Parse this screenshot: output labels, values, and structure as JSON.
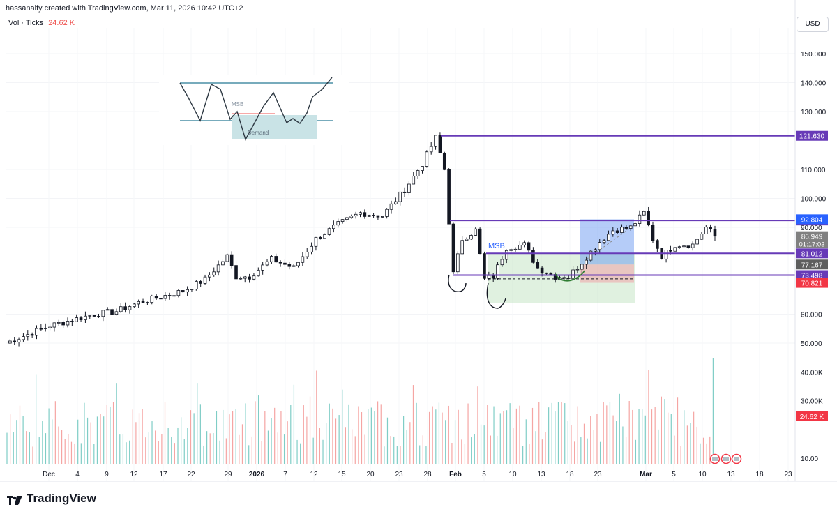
{
  "header": {
    "attribution": "hassanalfy created with TradingView.com, Mar 11, 2026 10:42 UTC+2",
    "vol_label": "Vol · Ticks",
    "vol_value": "24.62 K",
    "currency": "USD"
  },
  "footer": {
    "brand": "TradingView",
    "logo_icon": "tradingview-logo-icon"
  },
  "colors": {
    "up": "#26a69a",
    "down": "#ef5350",
    "level_line": "#673ab7",
    "long_target": "#5b8def",
    "long_stop": "#f0a3a8",
    "long_zone": "#a5d6a7",
    "price_tag_dark": "#5d5d5d",
    "last_price": "#808080"
  },
  "annotations": {
    "msb_label": "MSB",
    "inset_msb": "MSB",
    "inset_demand": "Demand"
  },
  "chart_data": {
    "type": "candlestick",
    "title": "",
    "x_ticks": [
      "Dec",
      "4",
      "9",
      "12",
      "17",
      "22",
      "29",
      "2026",
      "7",
      "12",
      "15",
      "20",
      "23",
      "28",
      "Feb",
      "5",
      "10",
      "13",
      "18",
      "23",
      "Mar",
      "5",
      "10",
      "13",
      "18",
      "23"
    ],
    "y_ticks": [
      "150.000",
      "140.000",
      "130.000",
      "110.000",
      "100.000",
      "90.000",
      "60.000",
      "50.000"
    ],
    "ylim": [
      45,
      160
    ],
    "volume_ticks": [
      "40.00K",
      "30.00K",
      "10.00"
    ],
    "volume_ylim": [
      8,
      45
    ],
    "horizontal_levels": [
      {
        "label": "121.630",
        "value": 121.63,
        "color": "#673ab7"
      },
      {
        "label": "92.371",
        "value": 92.371,
        "color": "#673ab7"
      },
      {
        "label": "81.012",
        "value": 81.012,
        "color": "#673ab7"
      },
      {
        "label": "73.498",
        "value": 73.498,
        "color": "#673ab7"
      }
    ],
    "price_tags": [
      {
        "label": "92.804",
        "value": 92.804,
        "color": "#2962ff"
      },
      {
        "label": "86.949",
        "value": 86.949,
        "color": "#808080",
        "sub": "01:17:03"
      },
      {
        "label": "77.167",
        "value": 77.167,
        "color": "#5d5d5d"
      },
      {
        "label": "70.821",
        "value": 70.821,
        "color": "#f23645"
      },
      {
        "label": "24.62 K",
        "value": 24.62,
        "color": "#f23645",
        "pane": "volume"
      }
    ],
    "last_price": 86.949,
    "price_path": [
      {
        "x": 0,
        "y": 50
      },
      {
        "x": 5,
        "y": 53
      },
      {
        "x": 10,
        "y": 56
      },
      {
        "x": 15,
        "y": 58
      },
      {
        "x": 20,
        "y": 60
      },
      {
        "x": 25,
        "y": 61
      },
      {
        "x": 30,
        "y": 64
      },
      {
        "x": 35,
        "y": 66
      },
      {
        "x": 40,
        "y": 68
      },
      {
        "x": 45,
        "y": 72
      },
      {
        "x": 50,
        "y": 80
      },
      {
        "x": 52,
        "y": 73
      },
      {
        "x": 55,
        "y": 73
      },
      {
        "x": 60,
        "y": 79
      },
      {
        "x": 65,
        "y": 76
      },
      {
        "x": 70,
        "y": 86
      },
      {
        "x": 75,
        "y": 91
      },
      {
        "x": 80,
        "y": 95
      },
      {
        "x": 85,
        "y": 94
      },
      {
        "x": 90,
        "y": 103
      },
      {
        "x": 94,
        "y": 112
      },
      {
        "x": 97,
        "y": 121
      },
      {
        "x": 99,
        "y": 110
      },
      {
        "x": 101,
        "y": 74
      },
      {
        "x": 103,
        "y": 86
      },
      {
        "x": 106,
        "y": 89
      },
      {
        "x": 108,
        "y": 72
      },
      {
        "x": 110,
        "y": 73
      },
      {
        "x": 113,
        "y": 83
      },
      {
        "x": 117,
        "y": 84
      },
      {
        "x": 120,
        "y": 76
      },
      {
        "x": 124,
        "y": 73
      },
      {
        "x": 127,
        "y": 73
      },
      {
        "x": 130,
        "y": 78
      },
      {
        "x": 134,
        "y": 85
      },
      {
        "x": 137,
        "y": 89
      },
      {
        "x": 141,
        "y": 90
      },
      {
        "x": 144,
        "y": 95
      },
      {
        "x": 146,
        "y": 86
      },
      {
        "x": 148,
        "y": 80
      },
      {
        "x": 151,
        "y": 84
      },
      {
        "x": 155,
        "y": 84
      },
      {
        "x": 158,
        "y": 90
      },
      {
        "x": 160,
        "y": 87
      }
    ],
    "position_long": {
      "entry": 77.167,
      "stop": 70.821,
      "target": 92.804
    },
    "inset_diagram": {
      "labels": [
        "MSB",
        "Demand"
      ]
    }
  }
}
